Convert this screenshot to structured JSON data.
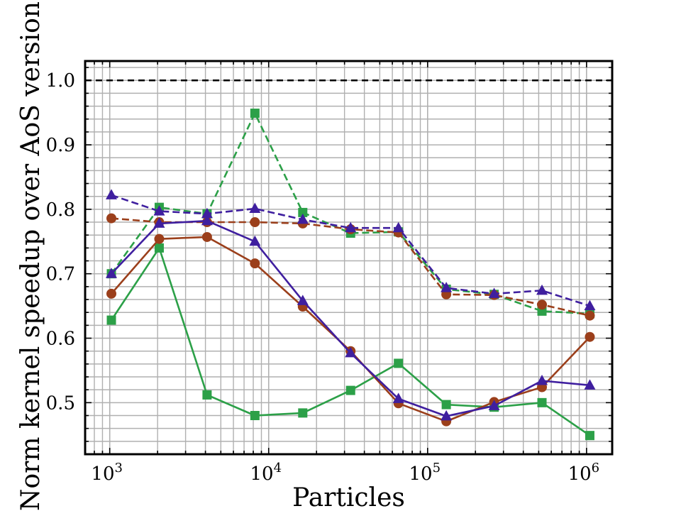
{
  "chart_data": {
    "type": "line",
    "title": "",
    "xlabel": "Particles",
    "ylabel": "Norm kernel speedup over AoS version",
    "x_scale": "log",
    "xlim": [
      700,
      1450000
    ],
    "ylim": [
      0.42,
      1.03
    ],
    "grid": true,
    "legend": "none",
    "reference_line": {
      "y": 1.0,
      "style": "dashed",
      "color": "#000000"
    },
    "x_ticks": [
      {
        "value": 1000,
        "base": "10",
        "exp": "3"
      },
      {
        "value": 10000,
        "base": "10",
        "exp": "4"
      },
      {
        "value": 100000,
        "base": "10",
        "exp": "5"
      },
      {
        "value": 1000000,
        "base": "10",
        "exp": "6"
      }
    ],
    "y_ticks": [
      {
        "value": 0.5,
        "label": "0.5"
      },
      {
        "value": 0.6,
        "label": "0.6"
      },
      {
        "value": 0.7,
        "label": "0.7"
      },
      {
        "value": 0.8,
        "label": "0.8"
      },
      {
        "value": 0.9,
        "label": "0.9"
      },
      {
        "value": 1.0,
        "label": "1.0"
      }
    ],
    "x": [
      1024,
      2048,
      4096,
      8192,
      16384,
      32768,
      65536,
      131072,
      262144,
      524288,
      1048576
    ],
    "series": [
      {
        "color": "#2ca048",
        "marker": "square",
        "dash": true,
        "values": [
          0.7,
          0.803,
          0.793,
          0.949,
          0.795,
          0.763,
          0.765,
          0.676,
          0.668,
          0.642,
          0.638
        ]
      },
      {
        "color": "#9b3f1b",
        "marker": "circle",
        "dash": true,
        "values": [
          0.786,
          0.78,
          0.78,
          0.78,
          0.778,
          0.769,
          0.764,
          0.668,
          0.667,
          0.652,
          0.635
        ]
      },
      {
        "color": "#3f1f9f",
        "marker": "triangle",
        "dash": true,
        "values": [
          0.822,
          0.797,
          0.793,
          0.801,
          0.784,
          0.771,
          0.771,
          0.678,
          0.669,
          0.674,
          0.65
        ]
      },
      {
        "color": "#2ca048",
        "marker": "square",
        "dash": false,
        "values": [
          0.628,
          0.74,
          0.512,
          0.48,
          0.484,
          0.519,
          0.561,
          0.497,
          0.493,
          0.5,
          0.449
        ]
      },
      {
        "color": "#9b3f1b",
        "marker": "circle",
        "dash": false,
        "values": [
          0.669,
          0.754,
          0.757,
          0.716,
          0.649,
          0.58,
          0.499,
          0.471,
          0.501,
          0.524,
          0.602
        ]
      },
      {
        "color": "#3f1f9f",
        "marker": "triangle",
        "dash": false,
        "values": [
          0.7,
          0.778,
          0.782,
          0.75,
          0.658,
          0.577,
          0.506,
          0.479,
          0.495,
          0.534,
          0.527
        ]
      }
    ]
  }
}
